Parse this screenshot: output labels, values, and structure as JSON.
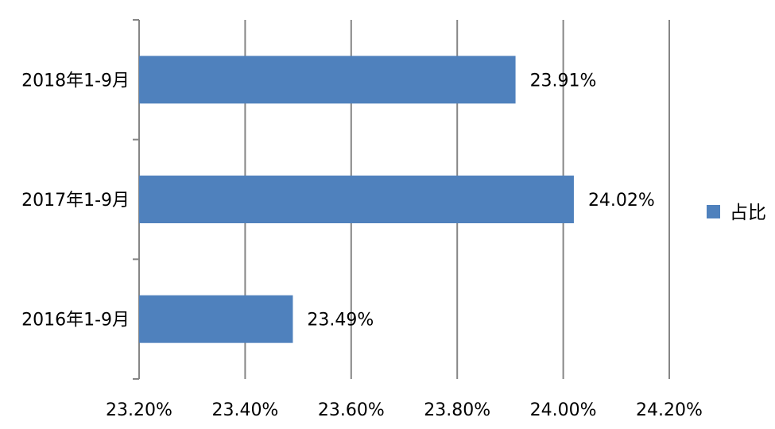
{
  "chart_data": {
    "type": "bar",
    "orientation": "horizontal",
    "categories": [
      "2018年1-9月",
      "2017年1-9月",
      "2016年1-9月"
    ],
    "series": [
      {
        "name": "占比",
        "values": [
          23.91,
          24.02,
          23.49
        ],
        "color": "#4F81BD"
      }
    ],
    "data_labels": [
      "23.91%",
      "24.02%",
      "23.49%"
    ],
    "xlim": [
      23.2,
      24.2
    ],
    "x_ticks": [
      23.2,
      23.4,
      23.6,
      23.8,
      24.0,
      24.2
    ],
    "x_tick_labels": [
      "23.20%",
      "23.40%",
      "23.60%",
      "23.80%",
      "24.00%",
      "24.20%"
    ],
    "grid": "vertical",
    "legend": {
      "position": "right",
      "label": "占比"
    },
    "title": "",
    "xlabel": "",
    "ylabel": ""
  }
}
